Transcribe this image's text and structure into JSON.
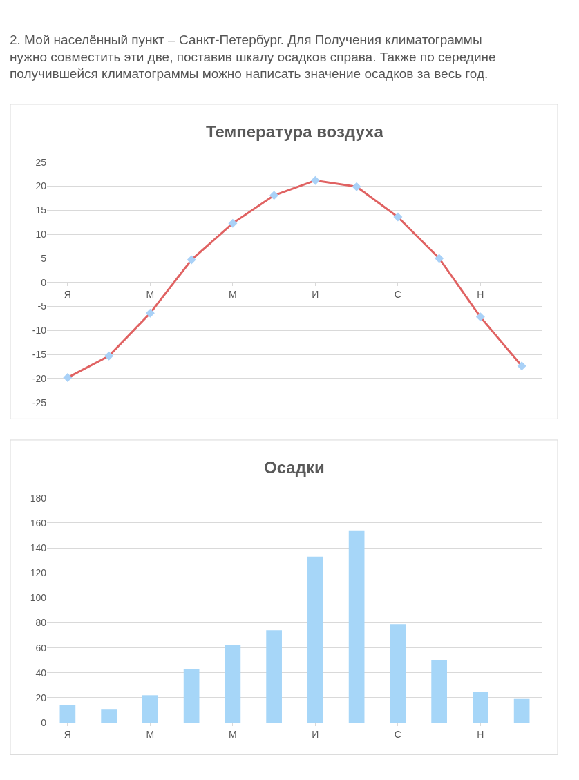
{
  "chart_data": [
    {
      "type": "line",
      "title": "Температура воздуха",
      "annotations": [
        "2. Мой населённый пункт – Санкт-Петербург. Для Получения климатограммы\nнужно совместить эти две, поставив шкалу осадков справа. Также по середине\nполучившейся климатограммы можно написать значение осадков за весь год."
      ],
      "categories": [
        "Я",
        null,
        "М",
        null,
        "М",
        null,
        "И",
        null,
        "С",
        null,
        "Н",
        null
      ],
      "series": [
        {
          "color": "#e06262",
          "colors": [
            "#a9d1f7",
            "#a9d1f7",
            "#a9d1f7",
            "#a9d1f7",
            "#a9d1f7",
            "#a9d1f7",
            "#a9d1f7",
            "#a9d1f7",
            "#a9d1f7",
            "#a9d1f7",
            "#a9d1f7",
            "#a9d1f7"
          ],
          "values": [
            -19.8,
            -15.3,
            -6.4,
            4.7,
            12.3,
            18.1,
            21.2,
            19.9,
            13.6,
            5.0,
            -7.2,
            -17.4
          ]
        }
      ],
      "ylim": [
        -25,
        25
      ],
      "yticks": [
        -25,
        -20,
        -15,
        -10,
        -5,
        0,
        5,
        10,
        15,
        20,
        25
      ],
      "grid": "y",
      "marker": "diamond",
      "line_style": "solid"
    },
    {
      "type": "bar",
      "title": "Осадки",
      "categories": [
        "Я",
        null,
        "М",
        null,
        "М",
        null,
        "И",
        null,
        "С",
        null,
        "Н",
        null
      ],
      "values": [
        14,
        11,
        22,
        43,
        62,
        74,
        133,
        154,
        79,
        50,
        25,
        19
      ],
      "color": "#a6d6f8",
      "ylim": [
        0,
        180
      ],
      "yticks": [
        0,
        20,
        40,
        60,
        80,
        100,
        120,
        140,
        160,
        180
      ],
      "grid": "y"
    }
  ]
}
